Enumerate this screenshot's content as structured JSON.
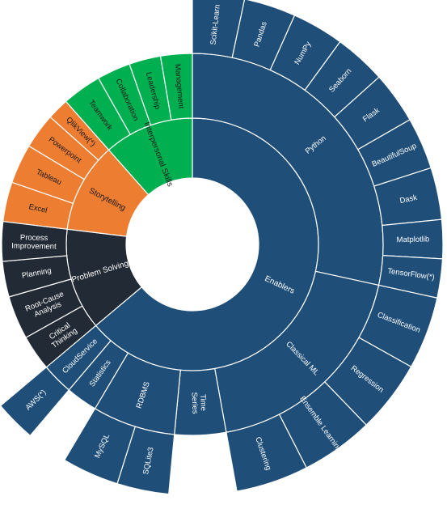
{
  "chart_data": {
    "type": "sunburst",
    "title": "",
    "colors": {
      "Enablers": "#1f4e79",
      "Problem Solving": "#222a35",
      "Storytelling": "#ed7d31",
      "Interpersonal Skills": "#00b050"
    },
    "children": [
      {
        "name": "Enablers",
        "children": [
          {
            "name": "Python",
            "children": [
              {
                "name": "Scikit-Learn",
                "value": 1
              },
              {
                "name": "Pandas",
                "value": 1
              },
              {
                "name": "NumPy",
                "value": 1
              },
              {
                "name": "Seaborn",
                "value": 1
              },
              {
                "name": "Flask",
                "value": 1
              },
              {
                "name": "BeautifulSoup",
                "value": 1
              },
              {
                "name": "Dask",
                "value": 1
              },
              {
                "name": "Matplotlib",
                "value": 0.75
              },
              {
                "name": "TensorFlow(*)",
                "value": 0.75
              }
            ]
          },
          {
            "name": "Classical ML",
            "children": [
              {
                "name": "Classification",
                "value": 1.4
              },
              {
                "name": "Regression",
                "value": 1.4
              },
              {
                "name": "Ensemble Learning",
                "value": 1.4
              },
              {
                "name": "Clustering",
                "value": 1.4
              }
            ]
          },
          {
            "name": "Time Series",
            "value": 1.3
          },
          {
            "name": "RDBMS",
            "children": [
              {
                "name": "SQLite3",
                "value": 1
              },
              {
                "name": "MySQL",
                "value": 1.1
              }
            ]
          },
          {
            "name": "Statistics",
            "value": 0.8
          },
          {
            "name": "CloudService",
            "children": [
              {
                "name": "AWS(*)",
                "value": 0.8
              }
            ]
          }
        ]
      },
      {
        "name": "Problem Solving",
        "children": [
          {
            "name": "Critical Thinking",
            "value": 0.9
          },
          {
            "name": "Root-Cause Analysis",
            "value": 1.1
          },
          {
            "name": "Planning",
            "value": 0.9
          },
          {
            "name": "Process Improvement",
            "value": 1
          }
        ]
      },
      {
        "name": "Storytelling",
        "children": [
          {
            "name": "Excel",
            "value": 1
          },
          {
            "name": "Tableau",
            "value": 1
          },
          {
            "name": "Powerpoint",
            "value": 0.9
          },
          {
            "name": "QlikView(*)",
            "value": 0.55
          }
        ]
      },
      {
        "name": "Interpersonal Skills",
        "children": [
          {
            "name": "Teamwork",
            "value": 1
          },
          {
            "name": "Collaboration",
            "value": 0.85
          },
          {
            "name": "Leadership",
            "value": 0.8
          },
          {
            "name": "Management",
            "value": 0.8
          }
        ]
      }
    ]
  }
}
